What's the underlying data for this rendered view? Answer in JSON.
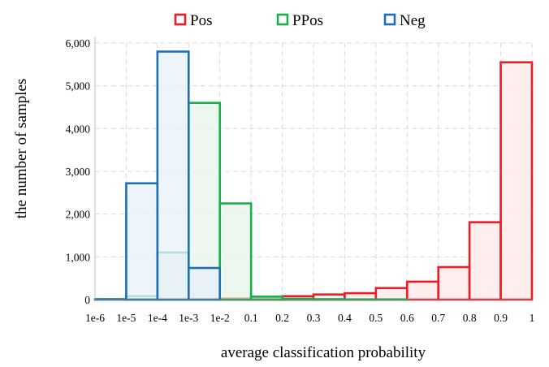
{
  "chart_data": {
    "type": "bar",
    "title": "",
    "xlabel": "average classification probability",
    "ylabel": "the number of samples",
    "x_tick_labels": [
      "1e-6",
      "1e-5",
      "1e-4",
      "1e-3",
      "1e-2",
      "0.1",
      "0.2",
      "0.3",
      "0.4",
      "0.5",
      "0.6",
      "0.7",
      "0.8",
      "0.9",
      "1"
    ],
    "y_tick_labels": [
      "0",
      "1,000",
      "2,000",
      "3,000",
      "4,000",
      "5,000",
      "6,000"
    ],
    "categories": [
      "1e-6 to 1e-5",
      "1e-5 to 1e-4",
      "1e-4 to 1e-3",
      "1e-3 to 1e-2",
      "1e-2 to 0.1",
      "0.1 to 0.2",
      "0.2 to 0.3",
      "0.3 to 0.4",
      "0.4 to 0.5",
      "0.5 to 0.6",
      "0.6 to 0.7",
      "0.7 to 0.8",
      "0.8 to 0.9",
      "0.9 to 1"
    ],
    "ylim": [
      0,
      6000
    ],
    "grid": true,
    "legend_position": "top",
    "series": [
      {
        "name": "Pos",
        "color": "#ee1c25",
        "fill": "#fde8e8",
        "values": [
          0,
          0,
          0,
          0,
          30,
          40,
          80,
          120,
          150,
          270,
          420,
          760,
          1810,
          5550
        ]
      },
      {
        "name": "PPos",
        "color": "#1ab04b",
        "fill": "#e6f6ea",
        "values": [
          0,
          80,
          1100,
          4600,
          2250,
          70,
          20,
          10,
          5,
          5,
          0,
          0,
          0,
          0
        ]
      },
      {
        "name": "Neg",
        "color": "#1f6fb7",
        "fill": "#e7f0f8",
        "values": [
          10,
          2720,
          5800,
          740,
          0,
          0,
          0,
          0,
          0,
          0,
          0,
          0,
          0,
          0
        ]
      }
    ]
  }
}
